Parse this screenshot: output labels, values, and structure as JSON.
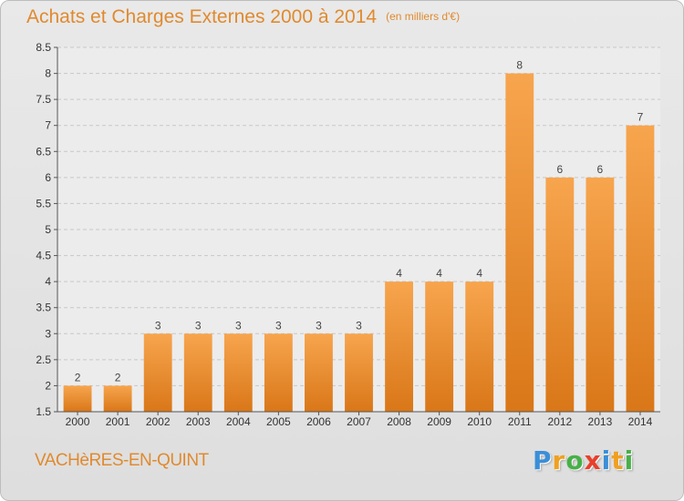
{
  "chart_data": {
    "type": "bar",
    "title": "Achats et Charges Externes 2000 à 2014",
    "unit_label": "(en milliers d'€)",
    "categories": [
      "2000",
      "2001",
      "2002",
      "2003",
      "2004",
      "2005",
      "2006",
      "2007",
      "2008",
      "2009",
      "2010",
      "2011",
      "2012",
      "2013",
      "2014"
    ],
    "values": [
      2,
      2,
      3,
      3,
      3,
      3,
      3,
      3,
      4,
      4,
      4,
      8,
      6,
      6,
      7
    ],
    "data_labels": [
      "2",
      "2",
      "3",
      "3",
      "3",
      "3",
      "3",
      "3",
      "4",
      "4",
      "4",
      "8",
      "6",
      "6",
      "7"
    ],
    "ylim": [
      1.5,
      8.5
    ],
    "yticks": [
      "1.5",
      "2",
      "2.5",
      "3",
      "3.5",
      "4",
      "4.5",
      "5",
      "5.5",
      "6",
      "6.5",
      "7",
      "7.5",
      "8",
      "8.5"
    ],
    "grid": true,
    "bar_color": "#f29a3a"
  },
  "footer": {
    "location": "VACHèRES-EN-QUINT",
    "logo_letters": [
      "P",
      "r",
      "o",
      "x",
      "i",
      "t",
      "i"
    ],
    "logo_colors": [
      "#3a8fd8",
      "#f0a020",
      "#48b048",
      "#e8402a",
      "#3a8fd8",
      "#f0a020",
      "#48b048"
    ]
  }
}
